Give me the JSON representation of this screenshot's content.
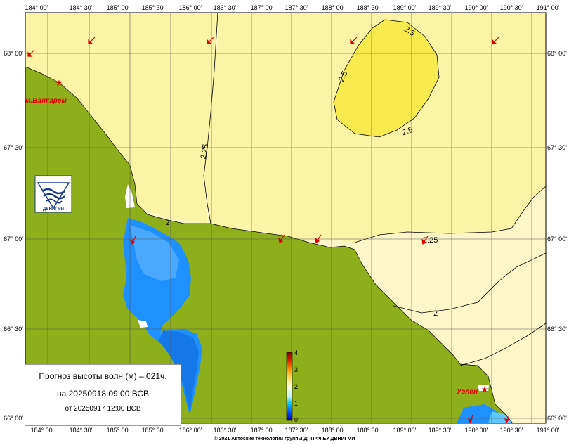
{
  "map": {
    "lon_labels": [
      "184° 00'",
      "184° 30'",
      "185° 00'",
      "185° 30'",
      "186° 00'",
      "186° 30'",
      "187° 00'",
      "187° 30'",
      "188° 00'",
      "188° 30'",
      "189° 00'",
      "189° 30'",
      "190° 00'",
      "190° 30'",
      "191° 00'"
    ],
    "lat_labels": [
      "68° 00'",
      "67° 30'",
      "67° 00'",
      "66° 30'",
      "66° 00'"
    ],
    "contour_labels": [
      "2.5",
      "2.5",
      "2.5",
      "2.25",
      "2.25",
      "2",
      "2"
    ],
    "places": [
      "м.Ванкарем",
      "Уэлен"
    ],
    "logo_text": "ДВНИГМИ",
    "colors": {
      "land": "#8fae1b",
      "sea_2": "#fcf6c8",
      "sea_225": "#fbf3a6",
      "sea_25": "#f6ea4e",
      "shallow_blue": "#1e90ff",
      "marker": "#e00000"
    }
  },
  "colorbar": {
    "ticks": [
      "4",
      "3",
      "2",
      "1",
      "0"
    ],
    "range": [
      0,
      4
    ]
  },
  "info": {
    "title": "Прогноз высоты волн (м) – 021ч.",
    "valid": "на 20250918 09:00 ВСВ",
    "issued": "от 20250917 12:00 ВСВ"
  },
  "copyright": "© 2021 Автоские технологии группы ДПП ФГБУ ДВНИГМИ"
}
